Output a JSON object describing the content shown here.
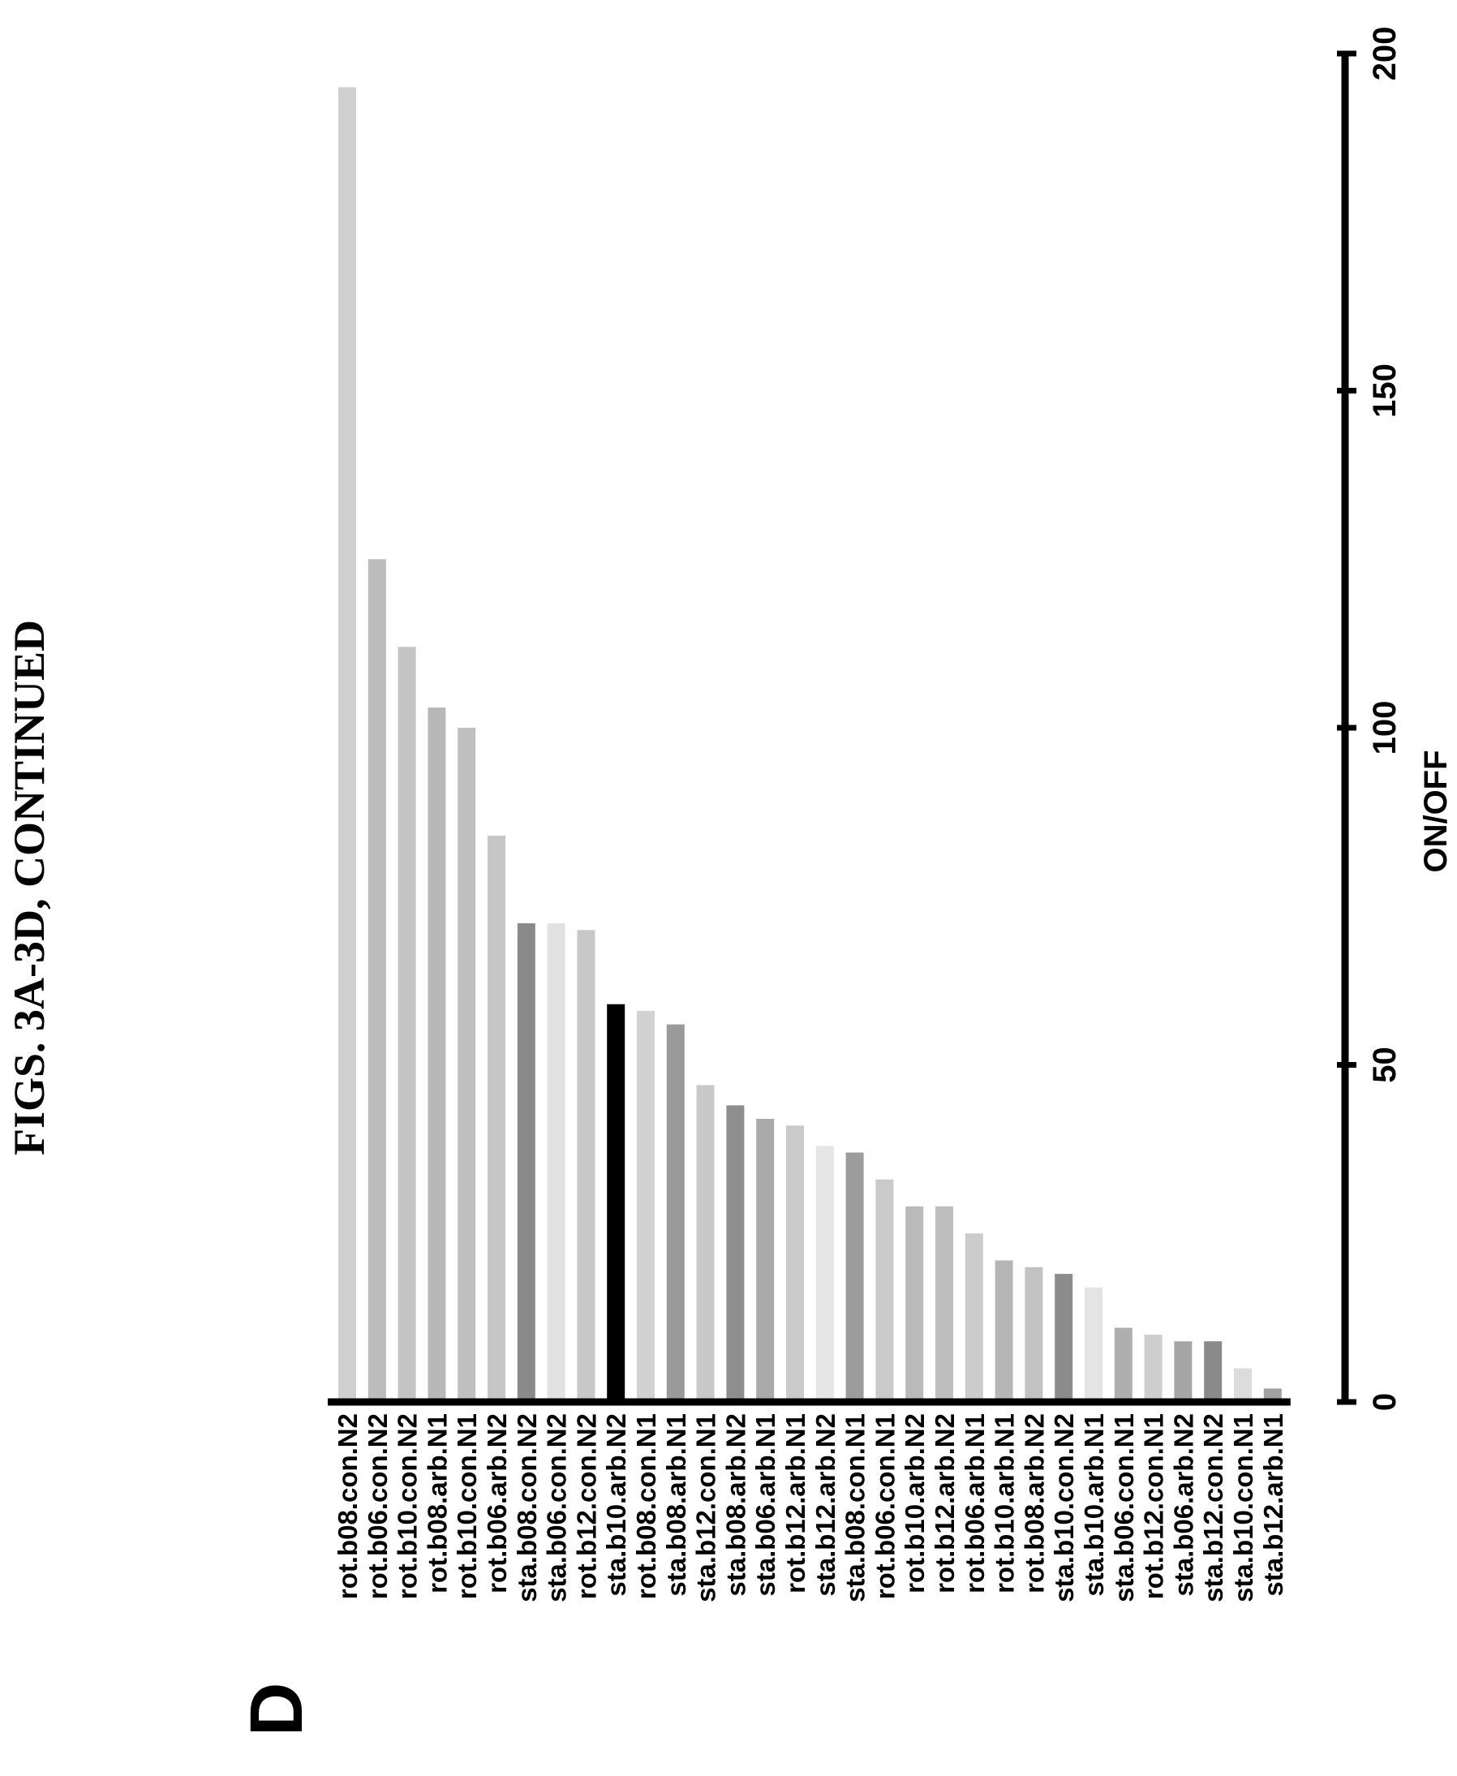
{
  "figure_title": "FIGS. 3A-3D, CONTINUED",
  "panel_label": "D",
  "chart_data": {
    "type": "bar",
    "orientation": "horizontal",
    "xlabel": "ON/OFF",
    "xlim": [
      0,
      200
    ],
    "xticks": [
      0,
      50,
      100,
      150,
      200
    ],
    "grid": false,
    "categories": [
      "rot.b08.con.N2",
      "rot.b06.con.N2",
      "rot.b10.con.N2",
      "rot.b08.arb.N1",
      "rot.b10.con.N1",
      "rot.b06.arb.N2",
      "sta.b08.con.N2",
      "sta.b06.con.N2",
      "rot.b12.con.N2",
      "sta.b10.arb.N2",
      "rot.b08.con.N1",
      "sta.b08.arb.N1",
      "sta.b12.con.N1",
      "sta.b08.arb.N2",
      "sta.b06.arb.N1",
      "rot.b12.arb.N1",
      "sta.b12.arb.N2",
      "sta.b08.con.N1",
      "rot.b06.con.N1",
      "rot.b10.arb.N2",
      "rot.b12.arb.N2",
      "rot.b06.arb.N1",
      "rot.b10.arb.N1",
      "rot.b08.arb.N2",
      "sta.b10.con.N2",
      "sta.b10.arb.N1",
      "sta.b06.con.N1",
      "rot.b12.con.N1",
      "sta.b06.arb.N2",
      "sta.b12.con.N2",
      "sta.b10.con.N1",
      "sta.b12.arb.N1"
    ],
    "values": [
      195,
      125,
      112,
      103,
      100,
      84,
      71,
      71,
      70,
      59,
      58,
      56,
      47,
      44,
      42,
      41,
      38,
      37,
      33,
      29,
      29,
      25,
      21,
      20,
      19,
      17,
      11,
      10,
      9,
      9,
      5,
      2
    ],
    "bar_colors": [
      "#cfcfcf",
      "#bcbcbc",
      "#c4c4c4",
      "#b8b8b8",
      "#c0c0c0",
      "#c6c6c6",
      "#8a8a8a",
      "#e2e2e2",
      "#c8c8c8",
      "#000000",
      "#d2d2d2",
      "#9a9a9a",
      "#c8c8c8",
      "#8e8e8e",
      "#aaaaaa",
      "#cbcbcb",
      "#e6e6e6",
      "#9c9c9c",
      "#cacaca",
      "#bababa",
      "#bebebe",
      "#cccccc",
      "#b6b6b6",
      "#c2c2c2",
      "#8c8c8c",
      "#e4e4e4",
      "#aeaeae",
      "#cecece",
      "#a6a6a6",
      "#8a8a8a",
      "#dcdcdc",
      "#a2a2a2"
    ]
  }
}
